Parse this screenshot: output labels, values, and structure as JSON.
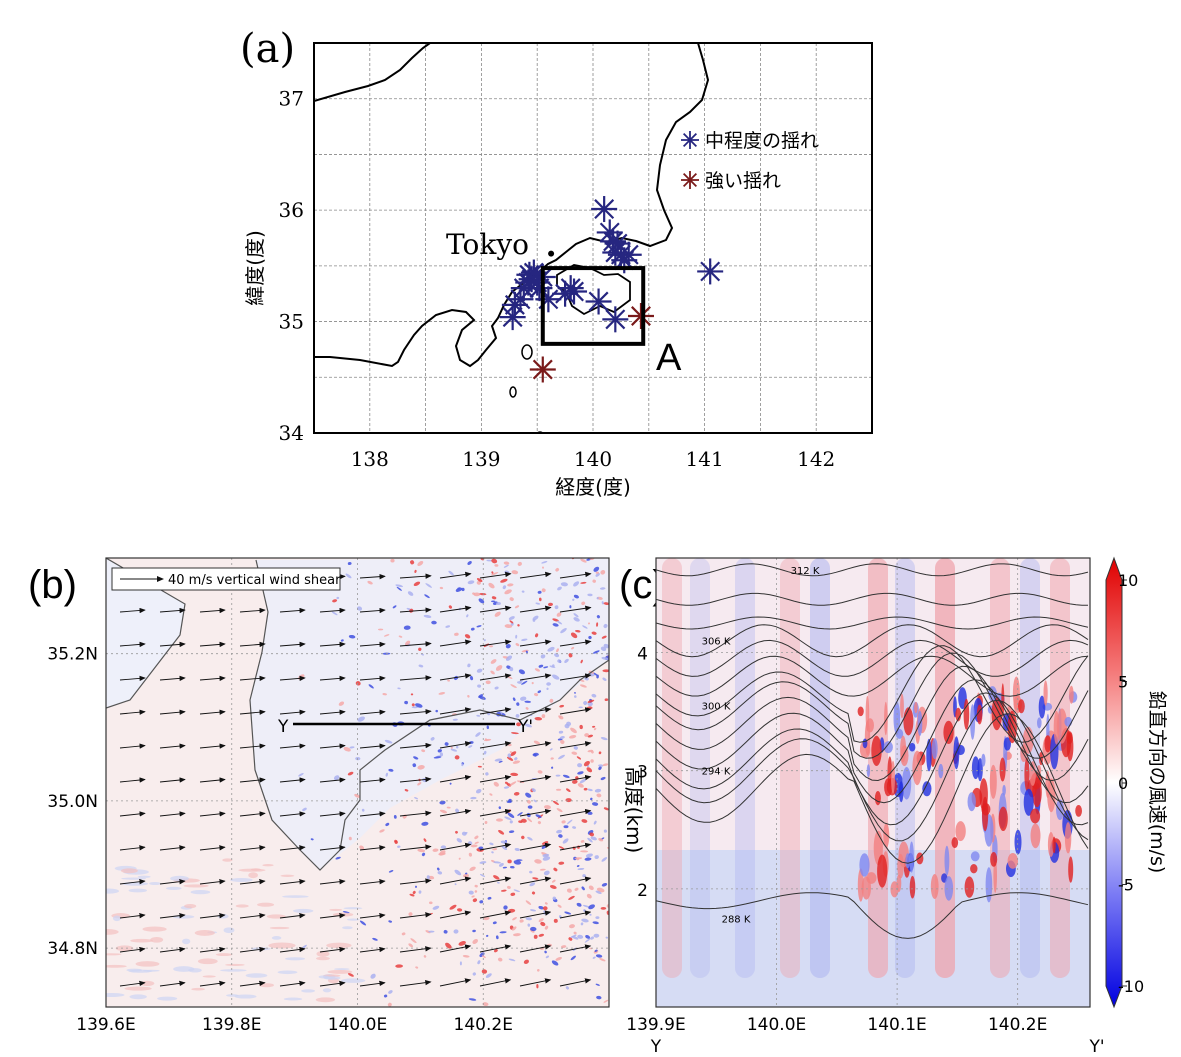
{
  "panels": {
    "a": {
      "panel_label": "(a)",
      "xlabel": "経度(度)",
      "ylabel": "緯度(度)",
      "city_label": "Tokyo",
      "box_label": "A",
      "legend": [
        "中程度の揺れ",
        "強い揺れ"
      ],
      "colors": {
        "moderate": "#262680",
        "strong": "#7a1a1a"
      }
    },
    "b": {
      "panel_label": "(b)",
      "legend_text": "40 m/s vertical wind shear",
      "section_start": "Y",
      "section_end": "Y'"
    },
    "c": {
      "panel_label": "(c)",
      "ylabel": "高度(km)",
      "colorbar_label": "鉛直方向の風速(m/s)",
      "section_start": "Y",
      "section_end": "Y'",
      "colorbar_ticks": [
        "10",
        "5",
        "0",
        "-5",
        "-10"
      ],
      "contour_labels": [
        "312 K",
        "306 K",
        "300 K",
        "294 K",
        "288 K"
      ]
    }
  },
  "chart_data": [
    {
      "type": "scatter",
      "title": "",
      "xlabel": "経度(度)",
      "ylabel": "緯度(度)",
      "xlim": [
        137.5,
        142.5
      ],
      "ylim": [
        34,
        37.5
      ],
      "xticks": [
        "138",
        "139",
        "140",
        "141",
        "142"
      ],
      "yticks": [
        "34",
        "35",
        "36",
        "37"
      ],
      "grid": true,
      "legend_position": "right",
      "series": [
        {
          "name": "中程度の揺れ",
          "color": "#262680",
          "points": [
            [
              139.28,
              35.04
            ],
            [
              139.3,
              35.15
            ],
            [
              139.35,
              35.2
            ],
            [
              139.38,
              35.3
            ],
            [
              139.42,
              35.35
            ],
            [
              139.43,
              35.42
            ],
            [
              139.45,
              35.38
            ],
            [
              139.47,
              35.44
            ],
            [
              139.5,
              35.35
            ],
            [
              139.52,
              35.3
            ],
            [
              139.55,
              35.4
            ],
            [
              139.6,
              35.2
            ],
            [
              139.75,
              35.25
            ],
            [
              139.8,
              35.3
            ],
            [
              139.83,
              35.27
            ],
            [
              140.05,
              35.18
            ],
            [
              140.1,
              36.01
            ],
            [
              140.15,
              35.8
            ],
            [
              140.18,
              35.72
            ],
            [
              140.2,
              35.62
            ],
            [
              140.22,
              35.7
            ],
            [
              140.25,
              35.6
            ],
            [
              140.28,
              35.55
            ],
            [
              140.32,
              35.6
            ],
            [
              140.2,
              35.02
            ],
            [
              141.05,
              35.45
            ]
          ]
        },
        {
          "name": "強い揺れ",
          "color": "#7a1a1a",
          "points": [
            [
              139.55,
              34.57
            ],
            [
              140.43,
              35.05
            ]
          ]
        }
      ],
      "box": {
        "label": "A",
        "lon": [
          139.55,
          140.45
        ],
        "lat": [
          34.8,
          35.48
        ]
      },
      "city": {
        "name": "Tokyo",
        "lon": 139.75,
        "lat": 35.7
      }
    },
    {
      "type": "heatmap",
      "title": "",
      "xlim": [
        139.6,
        140.4
      ],
      "ylim": [
        34.72,
        35.33
      ],
      "xticks": [
        "139.6E",
        "139.8E",
        "140.0E",
        "140.2E"
      ],
      "yticks": [
        "34.8N",
        "35.0N",
        "35.2N"
      ],
      "grid": true,
      "legend": "40 m/s vertical wind shear",
      "section_line": {
        "start": "Y",
        "end": "Y'",
        "lon": [
          139.9,
          140.28
        ],
        "lat": [
          35.11,
          35.11
        ]
      }
    },
    {
      "type": "heatmap",
      "title": "",
      "ylabel": "高度(km)",
      "xlim": [
        139.9,
        140.26
      ],
      "ylim": [
        1,
        4.8
      ],
      "xticks": [
        "139.9E",
        "140.0E",
        "140.1E",
        "140.2E"
      ],
      "yticks": [
        "2",
        "3",
        "4"
      ],
      "colorbar": {
        "label": "鉛直方向の風速(m/s)",
        "range": [
          -10,
          10
        ],
        "ticks": [
          10,
          5,
          0,
          -5,
          -10
        ]
      },
      "contours": [
        {
          "label": "312 K",
          "height_km": 4.7
        },
        {
          "label": "306 K",
          "height_km": 4.1
        },
        {
          "label": "300 K",
          "height_km": 3.55
        },
        {
          "label": "294 K",
          "height_km": 3.0
        },
        {
          "label": "288 K",
          "height_km": 1.9
        }
      ]
    }
  ]
}
